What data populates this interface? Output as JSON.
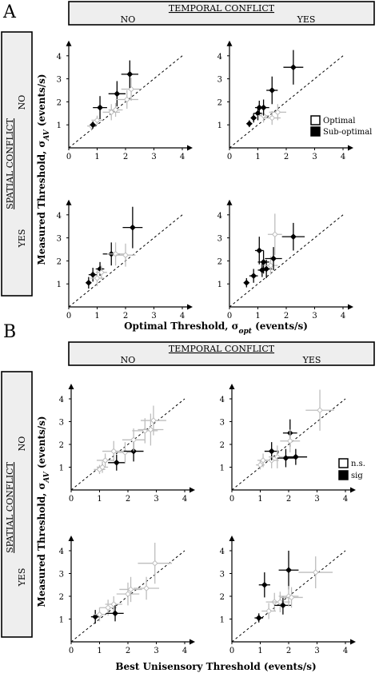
{
  "panels": [
    {
      "letter": "A",
      "temporal_header": "TEMPORAL CONFLICT",
      "temporal_no": "NO",
      "temporal_yes": "YES",
      "spatial_header": "SPATIAL CONFLICT",
      "spatial_no": "NO",
      "spatial_yes": "YES",
      "ylabel": "Measured Threshold, σ",
      "ylabel_sub": "AV",
      "ylabel_tail": " (events/s)",
      "xlabel": "Optimal Threshold, σ",
      "xlabel_sub": "opt",
      "xlabel_tail": " (events/s)",
      "legend": [
        {
          "label": "Optimal",
          "color": "#ffffff"
        },
        {
          "label": "Sub-optimal",
          "color": "#000000"
        }
      ]
    },
    {
      "letter": "B",
      "temporal_header": "TEMPORAL CONFLICT",
      "temporal_no": "NO",
      "temporal_yes": "YES",
      "spatial_header": "SPATIAL CONFLICT",
      "spatial_no": "NO",
      "spatial_yes": "YES",
      "ylabel": "Measured Threshold, σ",
      "ylabel_sub": "AV",
      "ylabel_tail": " (events/s)",
      "xlabel": "Best Unisensory Threshold (events/s)",
      "xlabel_sub": "",
      "xlabel_tail": "",
      "legend": [
        {
          "label": "n.s.",
          "color": "#ffffff"
        },
        {
          "label": "sig",
          "color": "#000000"
        }
      ]
    }
  ],
  "chart_data": [
    {
      "type": "scatter",
      "panel": "A",
      "temporal_conflict": "NO",
      "spatial_conflict": "NO",
      "xlim": [
        0,
        4
      ],
      "ylim": [
        0,
        4
      ],
      "xticks": [
        0,
        1,
        2,
        3,
        4
      ],
      "yticks": [
        0,
        1,
        2,
        3,
        4
      ],
      "diagonal": "dashed",
      "points": [
        {
          "x": 0.8,
          "y": 0.95,
          "xerr": 0.15,
          "yerr": 0.15,
          "filled": false
        },
        {
          "x": 0.85,
          "y": 1.0,
          "xerr": 0.1,
          "yerr": 0.15,
          "filled": true
        },
        {
          "x": 1.0,
          "y": 1.2,
          "xerr": 0.2,
          "yerr": 0.2,
          "filled": false
        },
        {
          "x": 1.1,
          "y": 1.75,
          "xerr": 0.25,
          "yerr": 0.5,
          "filled": true
        },
        {
          "x": 1.5,
          "y": 1.55,
          "xerr": 0.3,
          "yerr": 0.35,
          "filled": false
        },
        {
          "x": 1.65,
          "y": 1.65,
          "xerr": 0.25,
          "yerr": 0.3,
          "filled": false
        },
        {
          "x": 1.7,
          "y": 2.35,
          "xerr": 0.3,
          "yerr": 0.55,
          "filled": true
        },
        {
          "x": 2.05,
          "y": 2.1,
          "xerr": 0.4,
          "yerr": 0.4,
          "filled": false
        },
        {
          "x": 2.2,
          "y": 2.55,
          "xerr": 0.35,
          "yerr": 0.5,
          "filled": false
        },
        {
          "x": 2.15,
          "y": 3.2,
          "xerr": 0.3,
          "yerr": 0.6,
          "filled": true
        }
      ]
    },
    {
      "type": "scatter",
      "panel": "A",
      "temporal_conflict": "YES",
      "spatial_conflict": "NO",
      "xlim": [
        0,
        4
      ],
      "ylim": [
        0,
        4
      ],
      "xticks": [
        0,
        1,
        2,
        3,
        4
      ],
      "yticks": [
        0,
        1,
        2,
        3,
        4
      ],
      "diagonal": "dashed",
      "points": [
        {
          "x": 0.7,
          "y": 1.05,
          "xerr": 0.1,
          "yerr": 0.15,
          "filled": true
        },
        {
          "x": 0.85,
          "y": 1.3,
          "xerr": 0.1,
          "yerr": 0.2,
          "filled": true
        },
        {
          "x": 1.0,
          "y": 1.5,
          "xerr": 0.15,
          "yerr": 0.3,
          "filled": true
        },
        {
          "x": 1.05,
          "y": 1.75,
          "xerr": 0.15,
          "yerr": 0.3,
          "filled": true
        },
        {
          "x": 1.2,
          "y": 1.4,
          "xerr": 0.2,
          "yerr": 0.3,
          "filled": false
        },
        {
          "x": 1.2,
          "y": 1.75,
          "xerr": 0.2,
          "yerr": 0.35,
          "filled": true
        },
        {
          "x": 1.5,
          "y": 1.3,
          "xerr": 0.3,
          "yerr": 0.3,
          "filled": false
        },
        {
          "x": 1.5,
          "y": 2.5,
          "xerr": 0.2,
          "yerr": 0.6,
          "filled": true
        },
        {
          "x": 1.7,
          "y": 1.55,
          "xerr": 0.3,
          "yerr": 0.35,
          "filled": false
        },
        {
          "x": 2.25,
          "y": 3.5,
          "xerr": 0.35,
          "yerr": 0.75,
          "filled": true
        }
      ]
    },
    {
      "type": "scatter",
      "panel": "A",
      "temporal_conflict": "NO",
      "spatial_conflict": "YES",
      "xlim": [
        0,
        4
      ],
      "ylim": [
        0,
        4
      ],
      "xticks": [
        0,
        1,
        2,
        3,
        4
      ],
      "yticks": [
        0,
        1,
        2,
        3,
        4
      ],
      "diagonal": "dashed",
      "points": [
        {
          "x": 0.7,
          "y": 1.05,
          "xerr": 0.1,
          "yerr": 0.25,
          "filled": true
        },
        {
          "x": 0.85,
          "y": 1.4,
          "xerr": 0.15,
          "yerr": 0.3,
          "filled": true
        },
        {
          "x": 1.0,
          "y": 1.25,
          "xerr": 0.25,
          "yerr": 0.35,
          "filled": false
        },
        {
          "x": 1.1,
          "y": 1.65,
          "xerr": 0.15,
          "yerr": 0.3,
          "filled": true
        },
        {
          "x": 1.15,
          "y": 1.5,
          "xerr": 0.2,
          "yerr": 0.3,
          "filled": false
        },
        {
          "x": 1.5,
          "y": 2.3,
          "xerr": 0.3,
          "yerr": 0.5,
          "filled": true
        },
        {
          "x": 1.65,
          "y": 2.3,
          "xerr": 0.3,
          "yerr": 0.5,
          "filled": false
        },
        {
          "x": 2.0,
          "y": 2.25,
          "xerr": 0.35,
          "yerr": 0.5,
          "filled": false
        },
        {
          "x": 2.25,
          "y": 3.45,
          "xerr": 0.35,
          "yerr": 0.9,
          "filled": true
        }
      ]
    },
    {
      "type": "scatter",
      "panel": "A",
      "temporal_conflict": "YES",
      "spatial_conflict": "YES",
      "xlim": [
        0,
        4
      ],
      "ylim": [
        0,
        4
      ],
      "xticks": [
        0,
        1,
        2,
        3,
        4
      ],
      "yticks": [
        0,
        1,
        2,
        3,
        4
      ],
      "diagonal": "dashed",
      "points": [
        {
          "x": 0.6,
          "y": 1.05,
          "xerr": 0.1,
          "yerr": 0.2,
          "filled": true
        },
        {
          "x": 0.85,
          "y": 1.35,
          "xerr": 0.15,
          "yerr": 0.3,
          "filled": true
        },
        {
          "x": 1.05,
          "y": 2.45,
          "xerr": 0.15,
          "yerr": 0.6,
          "filled": true
        },
        {
          "x": 1.15,
          "y": 1.6,
          "xerr": 0.15,
          "yerr": 0.3,
          "filled": true
        },
        {
          "x": 1.2,
          "y": 1.95,
          "xerr": 0.2,
          "yerr": 0.5,
          "filled": true
        },
        {
          "x": 1.3,
          "y": 1.65,
          "xerr": 0.2,
          "yerr": 0.4,
          "filled": true
        },
        {
          "x": 1.45,
          "y": 1.8,
          "xerr": 0.25,
          "yerr": 0.4,
          "filled": false
        },
        {
          "x": 1.55,
          "y": 2.1,
          "xerr": 0.3,
          "yerr": 0.5,
          "filled": true
        },
        {
          "x": 1.6,
          "y": 3.15,
          "xerr": 0.25,
          "yerr": 0.9,
          "filled": false
        },
        {
          "x": 2.25,
          "y": 3.05,
          "xerr": 0.4,
          "yerr": 0.6,
          "filled": true
        }
      ]
    },
    {
      "type": "scatter",
      "panel": "B",
      "temporal_conflict": "NO",
      "spatial_conflict": "NO",
      "xlim": [
        0,
        4
      ],
      "ylim": [
        0,
        4
      ],
      "xticks": [
        0,
        1,
        2,
        3,
        4
      ],
      "yticks": [
        0,
        1,
        2,
        3,
        4
      ],
      "diagonal": "dashed",
      "points": [
        {
          "x": 1.0,
          "y": 0.9,
          "xerr": 0.2,
          "yerr": 0.2,
          "filled": false
        },
        {
          "x": 1.1,
          "y": 1.0,
          "xerr": 0.2,
          "yerr": 0.25,
          "filled": false
        },
        {
          "x": 1.2,
          "y": 1.3,
          "xerr": 0.3,
          "yerr": 0.3,
          "filled": false
        },
        {
          "x": 1.6,
          "y": 1.2,
          "xerr": 0.3,
          "yerr": 0.35,
          "filled": true
        },
        {
          "x": 1.5,
          "y": 1.7,
          "xerr": 0.4,
          "yerr": 0.45,
          "filled": false
        },
        {
          "x": 1.9,
          "y": 1.65,
          "xerr": 0.35,
          "yerr": 0.45,
          "filled": false
        },
        {
          "x": 2.2,
          "y": 1.7,
          "xerr": 0.35,
          "yerr": 0.45,
          "filled": true
        },
        {
          "x": 2.2,
          "y": 2.2,
          "xerr": 0.4,
          "yerr": 0.5,
          "filled": false
        },
        {
          "x": 2.6,
          "y": 2.6,
          "xerr": 0.45,
          "yerr": 0.55,
          "filled": false
        },
        {
          "x": 2.8,
          "y": 2.65,
          "xerr": 0.45,
          "yerr": 0.7,
          "filled": false
        },
        {
          "x": 2.9,
          "y": 3.05,
          "xerr": 0.45,
          "yerr": 0.65,
          "filled": false
        }
      ]
    },
    {
      "type": "scatter",
      "panel": "B",
      "temporal_conflict": "YES",
      "spatial_conflict": "NO",
      "xlim": [
        0,
        4
      ],
      "ylim": [
        0,
        4
      ],
      "xticks": [
        0,
        1,
        2,
        3,
        4
      ],
      "yticks": [
        0,
        1,
        2,
        3,
        4
      ],
      "diagonal": "dashed",
      "points": [
        {
          "x": 1.0,
          "y": 1.1,
          "xerr": 0.15,
          "yerr": 0.2,
          "filled": false
        },
        {
          "x": 1.1,
          "y": 1.3,
          "xerr": 0.2,
          "yerr": 0.3,
          "filled": false
        },
        {
          "x": 1.4,
          "y": 1.3,
          "xerr": 0.25,
          "yerr": 0.35,
          "filled": false
        },
        {
          "x": 1.4,
          "y": 1.7,
          "xerr": 0.25,
          "yerr": 0.4,
          "filled": true
        },
        {
          "x": 1.6,
          "y": 1.45,
          "xerr": 0.3,
          "yerr": 0.5,
          "filled": false
        },
        {
          "x": 1.9,
          "y": 1.4,
          "xerr": 0.3,
          "yerr": 0.4,
          "filled": true
        },
        {
          "x": 2.05,
          "y": 2.5,
          "xerr": 0.25,
          "yerr": 0.6,
          "filled": true
        },
        {
          "x": 2.05,
          "y": 2.15,
          "xerr": 0.35,
          "yerr": 0.5,
          "filled": false
        },
        {
          "x": 2.25,
          "y": 1.45,
          "xerr": 0.4,
          "yerr": 0.35,
          "filled": true
        },
        {
          "x": 3.1,
          "y": 3.5,
          "xerr": 0.5,
          "yerr": 0.9,
          "filled": false
        }
      ]
    },
    {
      "type": "scatter",
      "panel": "B",
      "temporal_conflict": "NO",
      "spatial_conflict": "YES",
      "xlim": [
        0,
        4
      ],
      "ylim": [
        0,
        4
      ],
      "xticks": [
        0,
        1,
        2,
        3,
        4
      ],
      "yticks": [
        0,
        1,
        2,
        3,
        4
      ],
      "diagonal": "dashed",
      "points": [
        {
          "x": 0.85,
          "y": 1.1,
          "xerr": 0.15,
          "yerr": 0.3,
          "filled": true
        },
        {
          "x": 1.0,
          "y": 1.2,
          "xerr": 0.2,
          "yerr": 0.3,
          "filled": false
        },
        {
          "x": 1.3,
          "y": 1.5,
          "xerr": 0.3,
          "yerr": 0.35,
          "filled": false
        },
        {
          "x": 1.5,
          "y": 1.65,
          "xerr": 0.3,
          "yerr": 0.35,
          "filled": false
        },
        {
          "x": 1.55,
          "y": 1.25,
          "xerr": 0.3,
          "yerr": 0.35,
          "filled": true
        },
        {
          "x": 2.0,
          "y": 2.1,
          "xerr": 0.4,
          "yerr": 0.5,
          "filled": false
        },
        {
          "x": 2.1,
          "y": 2.3,
          "xerr": 0.4,
          "yerr": 0.55,
          "filled": false
        },
        {
          "x": 2.65,
          "y": 2.35,
          "xerr": 0.45,
          "yerr": 0.5,
          "filled": false
        },
        {
          "x": 2.95,
          "y": 3.45,
          "xerr": 0.6,
          "yerr": 0.9,
          "filled": false
        }
      ]
    },
    {
      "type": "scatter",
      "panel": "B",
      "temporal_conflict": "YES",
      "spatial_conflict": "YES",
      "xlim": [
        0,
        4
      ],
      "ylim": [
        0,
        4
      ],
      "xticks": [
        0,
        1,
        2,
        3,
        4
      ],
      "yticks": [
        0,
        1,
        2,
        3,
        4
      ],
      "diagonal": "dashed",
      "points": [
        {
          "x": 0.95,
          "y": 1.05,
          "xerr": 0.15,
          "yerr": 0.2,
          "filled": true
        },
        {
          "x": 1.15,
          "y": 2.5,
          "xerr": 0.2,
          "yerr": 0.55,
          "filled": true
        },
        {
          "x": 1.3,
          "y": 1.35,
          "xerr": 0.25,
          "yerr": 0.35,
          "filled": false
        },
        {
          "x": 1.5,
          "y": 1.75,
          "xerr": 0.3,
          "yerr": 0.4,
          "filled": false
        },
        {
          "x": 1.7,
          "y": 1.75,
          "xerr": 0.35,
          "yerr": 0.45,
          "filled": false
        },
        {
          "x": 1.8,
          "y": 1.6,
          "xerr": 0.3,
          "yerr": 0.4,
          "filled": true
        },
        {
          "x": 2.0,
          "y": 3.15,
          "xerr": 0.35,
          "yerr": 0.85,
          "filled": true
        },
        {
          "x": 2.0,
          "y": 2.0,
          "xerr": 0.35,
          "yerr": 0.45,
          "filled": false
        },
        {
          "x": 2.1,
          "y": 1.95,
          "xerr": 0.4,
          "yerr": 0.45,
          "filled": false
        },
        {
          "x": 2.95,
          "y": 3.05,
          "xerr": 0.6,
          "yerr": 0.7,
          "filled": false
        }
      ]
    }
  ]
}
